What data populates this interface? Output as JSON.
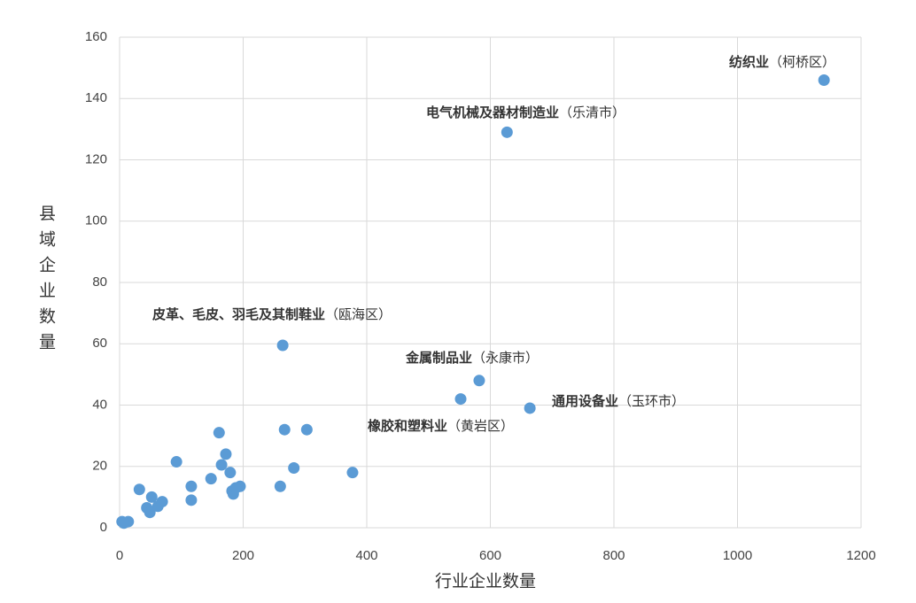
{
  "chart_data": {
    "type": "scatter",
    "x_label": "行业企业数量",
    "y_label": "县域企业数量",
    "xlim": [
      0,
      1200
    ],
    "xticks": [
      0,
      200,
      400,
      600,
      800,
      1000,
      1200
    ],
    "ylim": [
      0,
      160
    ],
    "yticks": [
      0,
      20,
      40,
      60,
      80,
      100,
      120,
      140,
      160
    ],
    "grid": true,
    "color": "#5b9bd5",
    "x": [
      1140,
      627,
      264,
      582,
      552,
      664,
      161,
      267,
      303,
      172,
      165,
      179,
      92,
      148,
      282,
      377,
      116,
      116,
      195,
      182,
      184,
      188,
      260,
      32,
      52,
      44,
      49,
      62,
      69,
      4,
      14,
      7
    ],
    "values": [
      146,
      129,
      59.5,
      48,
      42,
      39,
      31,
      32,
      32,
      24,
      20.5,
      18,
      21.5,
      16,
      19.5,
      18,
      13.5,
      9,
      13.5,
      12,
      11,
      13,
      13.5,
      12.5,
      10,
      6.5,
      5,
      7,
      8.5,
      2,
      2,
      1.5
    ],
    "annotations": [
      {
        "text": "纺织业",
        "region": "（柯桥区）"
      },
      {
        "text": "电气机械及器材制造业",
        "region": "（乐清市）"
      },
      {
        "text": "皮革、毛皮、羽毛及其制鞋业",
        "region": "（瓯海区）"
      },
      {
        "text": "金属制品业",
        "region": "（永康市）"
      },
      {
        "text": "通用设备业",
        "region": "（玉环市）"
      },
      {
        "text": "橡胶和塑料业",
        "region": "（黄岩区）"
      }
    ]
  }
}
